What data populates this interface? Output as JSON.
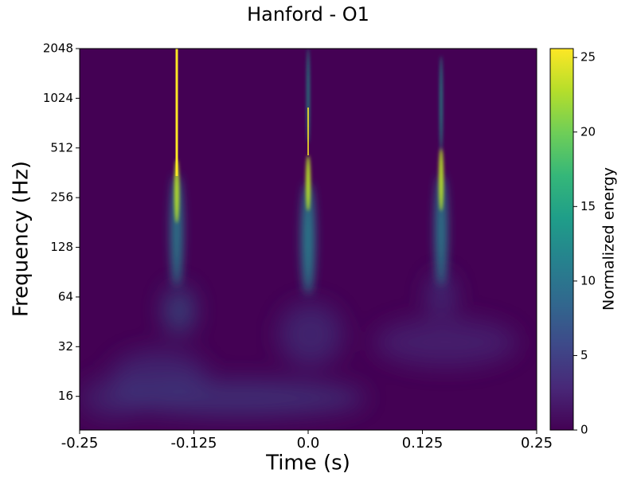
{
  "chart_data": {
    "type": "spectrogram",
    "title": "Hanford - O1",
    "xlabel": "Time (s)",
    "ylabel": "Frequency (Hz)",
    "colorbar_label": "Normalized energy",
    "xlim": [
      -0.25,
      0.25
    ],
    "xticks": [
      -0.25,
      -0.125,
      {
        "value": 0,
        "label": "0.0"
      },
      0.125,
      0.25
    ],
    "ylim": [
      10,
      2048
    ],
    "yscale": "log",
    "yticks": [
      16,
      32,
      64,
      128,
      256,
      512,
      1024,
      2048
    ],
    "clim": [
      0,
      25.6
    ],
    "cticks": [
      0,
      5,
      10,
      15,
      20,
      25
    ],
    "colormap": [
      "#440154",
      "#482878",
      "#3e4989",
      "#31688e",
      "#26828e",
      "#1f9e89",
      "#35b779",
      "#6ece58",
      "#b5de2b",
      "#fde725"
    ]
  }
}
